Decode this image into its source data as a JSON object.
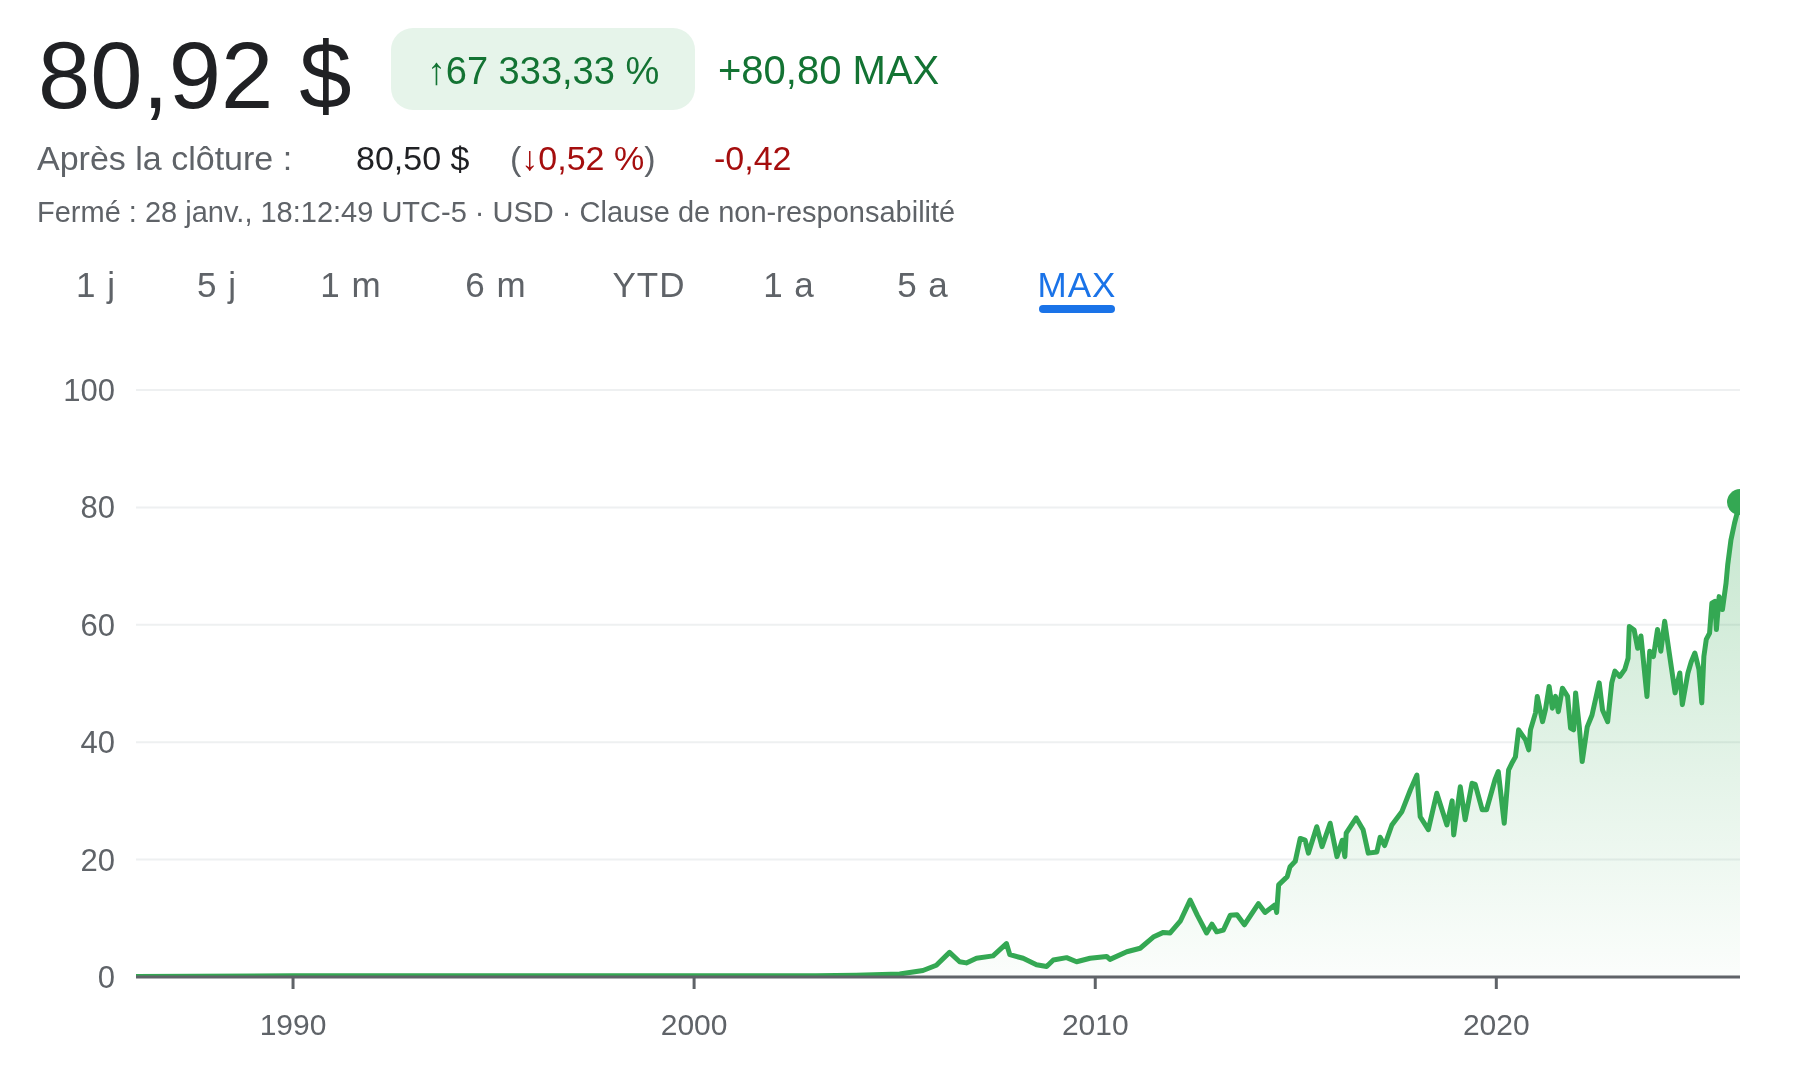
{
  "chart_data": {
    "type": "area",
    "title": "80,92 $",
    "annotations": [
      "↑67 333,33 %",
      "+80,80 MAX",
      "Après la clôture :",
      "80,50 $",
      "(↓0,52 %)",
      "-0,42",
      "Fermé : 28 janv., 18:12:49 UTC-5 · USD · Clause de non-responsabilité",
      "1 j",
      "5 j",
      "1 m",
      "6 m",
      "YTD",
      "1 a",
      "5 a",
      "MAX"
    ],
    "x": [
      "1986-02-01",
      "1990-01-15",
      "1995-01-15",
      "2000-01-15",
      "2003-01-15",
      "2004-01-15",
      "2005-02-15",
      "2005-09-15",
      "2006-01-15",
      "2006-05-15",
      "2006-08-15",
      "2006-10-15",
      "2007-01-15",
      "2007-06-15",
      "2007-10-15",
      "2007-11-15",
      "2008-03-15",
      "2008-07-15",
      "2008-10-15",
      "2008-12-15",
      "2009-04-15",
      "2009-07-15",
      "2009-11-15",
      "2010-04-15",
      "2010-05-15",
      "2010-10-15",
      "2011-02-14",
      "2011-06-13",
      "2011-09-13",
      "2011-11-14",
      "2012-02-14",
      "2012-05-14",
      "2012-07-19",
      "2012-10-11",
      "2012-11-28",
      "2013-01-11",
      "2013-03-13",
      "2013-05-14",
      "2013-07-15",
      "2013-09-20",
      "2014-01-26",
      "2014-03-27",
      "2014-06-27",
      "2014-07-11",
      "2014-07-29",
      "2014-10-15",
      "2014-11-10",
      "2014-12-27",
      "2015-02-10",
      "2015-03-27",
      "2015-04-26",
      "2015-07-11",
      "2015-08-28",
      "2015-11-10",
      "2016-01-11",
      "2016-02-28",
      "2016-03-23",
      "2016-04-04",
      "2016-07-04",
      "2016-09-05",
      "2016-10-22",
      "2017-01-08",
      "2017-02-07",
      "2017-03-20",
      "2017-05-25",
      "2017-08-25",
      "2017-11-10",
      "2018-01-08",
      "2018-02-07",
      "2018-04-22",
      "2018-07-08",
      "2018-10-08",
      "2018-11-25",
      "2018-12-09",
      "2019-02-07",
      "2019-03-23",
      "2019-05-25",
      "2019-06-23",
      "2019-08-25",
      "2019-10-04",
      "2019-12-20",
      "2020-01-19",
      "2020-03-13",
      "2020-04-22",
      "2020-05-21",
      "2020-06-23",
      "2020-07-22",
      "2020-09-23",
      "2020-10-22",
      "2020-11-07",
      "2020-12-23",
      "2021-01-08",
      "2021-02-25",
      "2021-03-23",
      "2021-04-26",
      "2021-05-25",
      "2021-06-23",
      "2021-07-19",
      "2021-08-25",
      "2021-10-11",
      "2021-11-07",
      "2021-12-05",
      "2021-12-23",
      "2022-01-26",
      "2022-02-21",
      "2022-04-08",
      "2022-05-21",
      "2022-07-26",
      "2022-08-25",
      "2022-10-11",
      "2022-11-17",
      "2022-12-16",
      "2023-01-29",
      "2023-03-16",
      "2023-04-15",
      "2023-04-26",
      "2023-06-09",
      "2023-07-11",
      "2023-08-10",
      "2023-10-04",
      "2023-10-29",
      "2023-12-02",
      "2024-01-08",
      "2024-02-07",
      "2024-03-13",
      "2024-04-19",
      "2024-06-16",
      "2024-07-29",
      "2024-08-21",
      "2024-10-11",
      "2024-11-10",
      "2024-12-13",
      "2025-01-19",
      "2025-02-14",
      "2025-03-05",
      "2025-03-27",
      "2025-04-26",
      "2025-05-17",
      "2025-06-13",
      "2025-06-27",
      "2025-07-22",
      "2025-08-21",
      "2025-09-23",
      "2025-10-08",
      "2025-11-07",
      "2025-12-09",
      "2026-01-28"
    ],
    "series": [
      {
        "color": "#34a853",
        "values": [
          0.1,
          0.2,
          0.2,
          0.2,
          0.2,
          0.3,
          0.5,
          1.1,
          2.0,
          4.2,
          2.6,
          2.4,
          3.2,
          3.6,
          5.7,
          3.8,
          3.2,
          2.1,
          1.8,
          2.9,
          3.3,
          2.6,
          3.2,
          3.5,
          3.0,
          4.3,
          4.9,
          6.8,
          7.6,
          7.5,
          9.5,
          13.1,
          10.5,
          7.5,
          9.0,
          7.7,
          8.0,
          10.5,
          10.6,
          8.9,
          12.5,
          11.0,
          12.3,
          11.0,
          15.7,
          17.1,
          18.8,
          19.7,
          23.6,
          23.3,
          21.1,
          25.6,
          22.2,
          26.2,
          20.5,
          23.3,
          20.5,
          24.5,
          27.1,
          25.1,
          21.1,
          21.3,
          23.8,
          22.4,
          25.9,
          28.2,
          31.9,
          34.4,
          27.3,
          25.1,
          31.3,
          25.9,
          30.0,
          24.2,
          32.4,
          26.8,
          33.0,
          32.8,
          28.5,
          28.5,
          33.6,
          35.0,
          26.2,
          35.3,
          36.4,
          37.5,
          42.1,
          40.4,
          38.7,
          42.1,
          45.0,
          47.8,
          43.5,
          45.5,
          49.5,
          45.8,
          47.8,
          45.2,
          49.2,
          47.8,
          42.4,
          42.1,
          48.4,
          42.6,
          36.7,
          42.6,
          44.6,
          50.1,
          45.5,
          43.5,
          50.1,
          52.1,
          51.2,
          52.4,
          54.3,
          59.7,
          59.1,
          56.0,
          58.1,
          47.8,
          55.5,
          54.6,
          59.2,
          55.5,
          60.6,
          55.8,
          48.4,
          51.8,
          46.4,
          51.8,
          53.7,
          55.2,
          52.4,
          46.7,
          54.6,
          57.5,
          58.6,
          63.7,
          64.0,
          59.2,
          64.8,
          62.6,
          67.1,
          70.2,
          74.5,
          77.3,
          80.9
        ]
      },
      {
        "type": "scatter",
        "marker": "circle",
        "color": "#34a853",
        "x": [
          "2026-01-28"
        ],
        "values": [
          80.9
        ]
      }
    ],
    "xlim": [
      "1986-02-01",
      "2026-01-28"
    ],
    "xticks": [
      "1990",
      "2000",
      "2010",
      "2020"
    ],
    "ylim": [
      0,
      100
    ],
    "yticks": [
      0,
      20,
      40,
      60,
      80,
      100
    ],
    "grid": "y"
  }
}
